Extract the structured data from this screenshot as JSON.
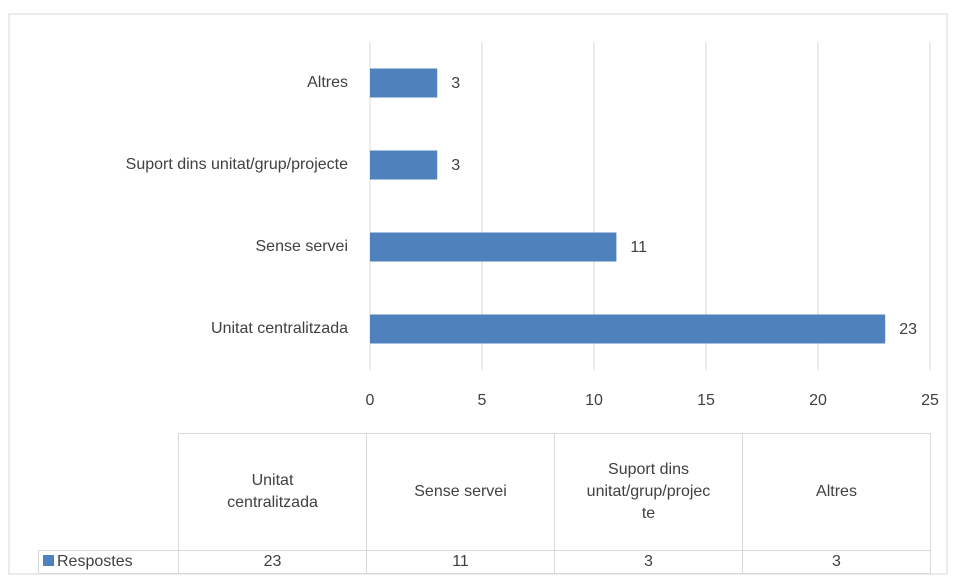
{
  "chart_data": {
    "type": "bar",
    "orientation": "horizontal",
    "categories": [
      "Unitat centralitzada",
      "Sense servei",
      "Suport dins unitat/grup/projecte",
      "Altres"
    ],
    "series": [
      {
        "name": "Respostes",
        "color": "#4f81bd",
        "values": [
          23,
          11,
          3,
          3
        ]
      }
    ],
    "xlim": [
      0,
      25
    ],
    "xticks": [
      0,
      5,
      10,
      15,
      20,
      25
    ],
    "grid": true,
    "data_table": true
  }
}
